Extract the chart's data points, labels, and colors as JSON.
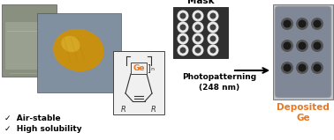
{
  "background_color": "#ffffff",
  "mask_label": "Mask",
  "photopatterning_label": "Photopatterning\n(248 nm)",
  "deposited_ge_label": "Deposited\nGe",
  "air_stable_label": "✓  Air-stable",
  "high_solubility_label": "✓  High solubility",
  "arrow_color": "#000000",
  "label_color_orange": "#E87722",
  "label_color_black": "#000000",
  "ge_color": "#E87722",
  "text_fontsize": 6.5,
  "label_fontsize": 7.5,
  "photo1_bg": "#8a9080",
  "photo1_liquid": "#9aa090",
  "photo1_beaker_top": "#c8ccc0",
  "photo2_bg": "#8090a0",
  "photo2_blob": "#c89010",
  "photo2_blob_hi": "#e0b830",
  "struct_bg": "#f0f0f0",
  "mask_bg": "#303030",
  "mask_circle_outer": "#e8e8e8",
  "mask_circle_inner": "#404040",
  "dep_bg": "#c0c4c8",
  "dep_inner_bg": "#808898",
  "dep_spot": "#1a1a1a",
  "dep_spot_ring": "#404040"
}
